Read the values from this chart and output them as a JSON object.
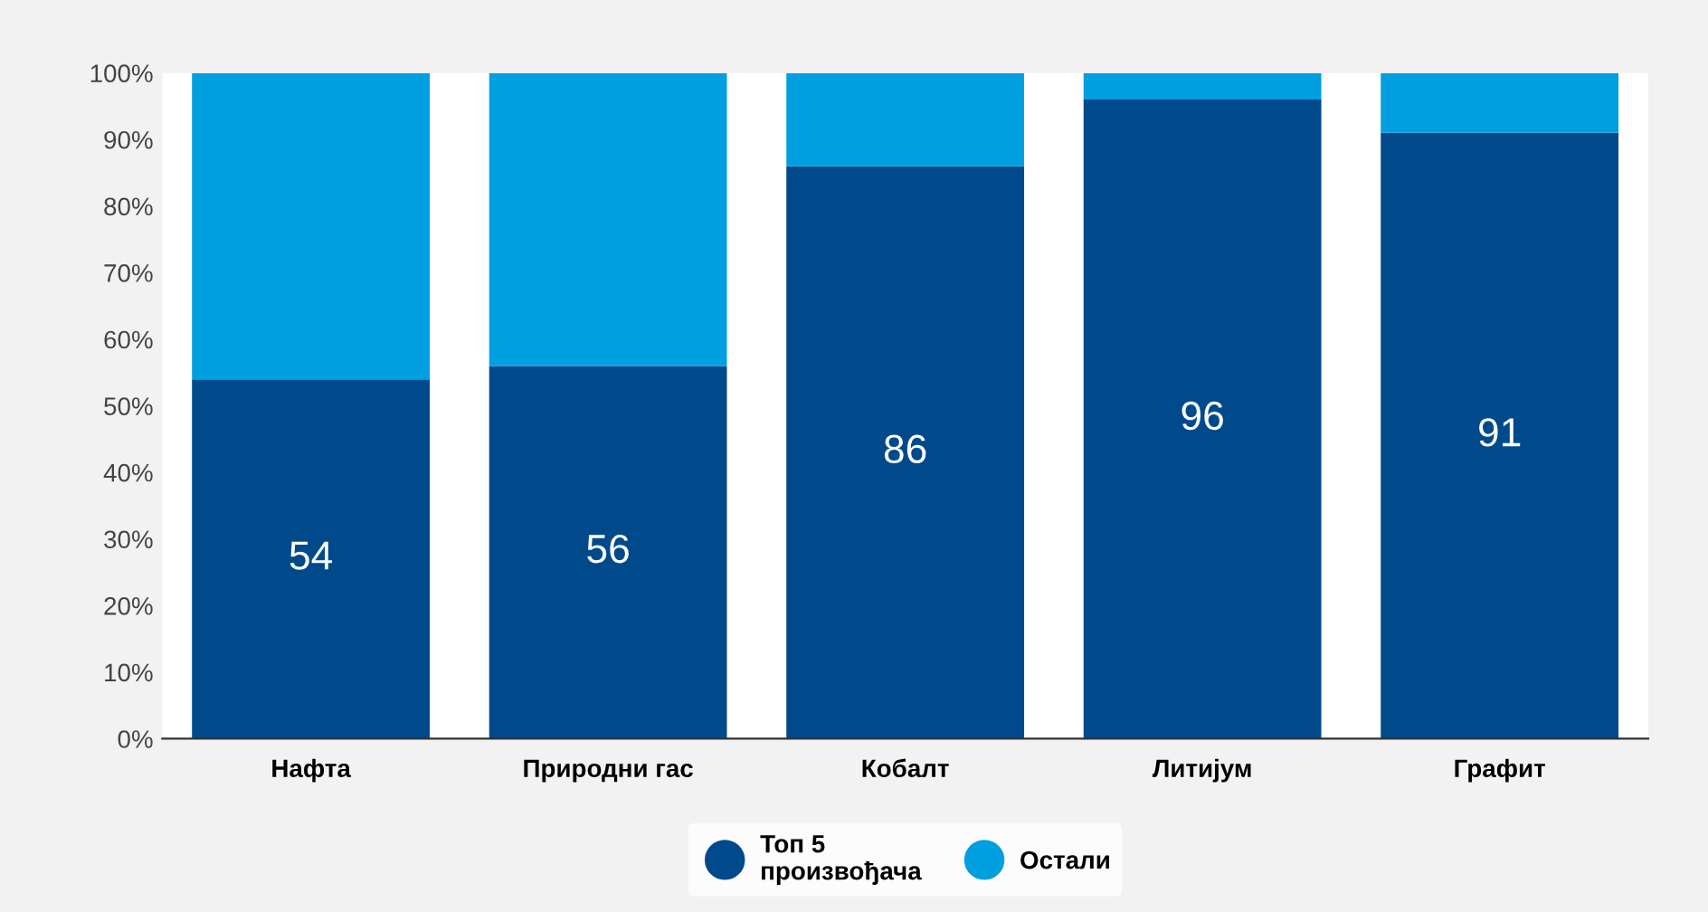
{
  "chart_data": {
    "type": "bar",
    "stacked": true,
    "categories": [
      "Нафта",
      "Природни гас",
      "Кобалт",
      "Литијум",
      "Графит"
    ],
    "series": [
      {
        "name": "Топ 5\nпроизвођача",
        "color": "#004a8c",
        "values": [
          54,
          56,
          86,
          96,
          91
        ],
        "value_labels": [
          "54",
          "56",
          "86",
          "96",
          "91"
        ]
      },
      {
        "name": "Остали",
        "color": "#009fe0",
        "values": [
          46,
          44,
          14,
          4,
          9
        ]
      }
    ],
    "ylim": [
      0,
      100
    ],
    "yticks": [
      {
        "value": 0,
        "label": "0%"
      },
      {
        "value": 10,
        "label": "10%"
      },
      {
        "value": 20,
        "label": "20%"
      },
      {
        "value": 30,
        "label": "30%"
      },
      {
        "value": 40,
        "label": "40%"
      },
      {
        "value": 50,
        "label": "50%"
      },
      {
        "value": 60,
        "label": "60%"
      },
      {
        "value": 70,
        "label": "70%"
      },
      {
        "value": 80,
        "label": "80%"
      },
      {
        "value": 90,
        "label": "90%"
      },
      {
        "value": 100,
        "label": "100%"
      }
    ],
    "grid": false,
    "legend": "bottom"
  }
}
